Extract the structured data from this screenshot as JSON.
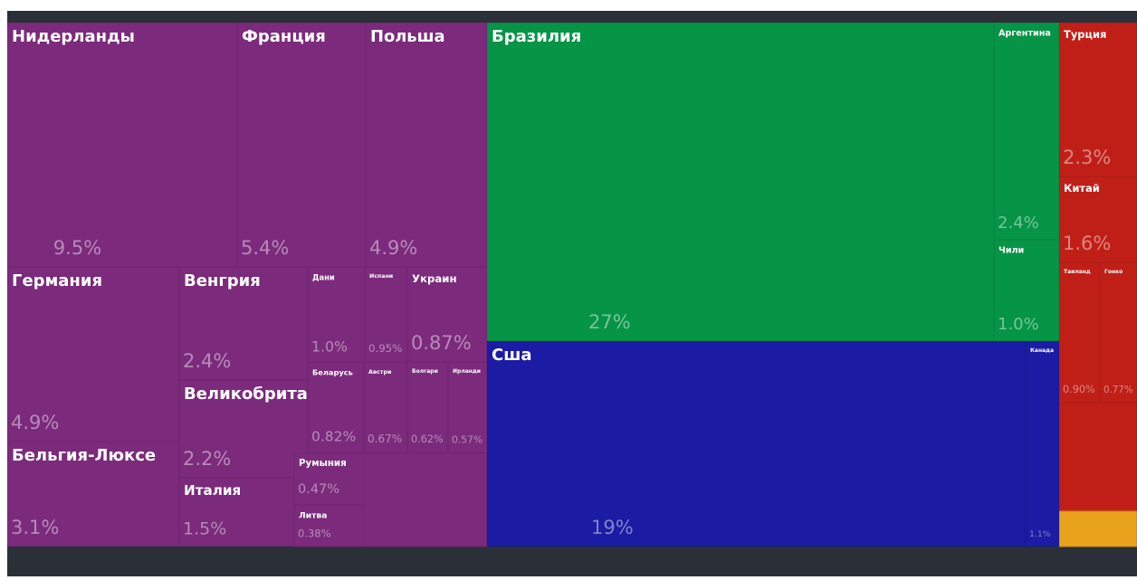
{
  "chart_data": {
    "type": "treemap",
    "categories": [
      "Нидерланды",
      "Франция",
      "Польша",
      "Германия",
      "Бельгия-Люксе",
      "Венгрия",
      "Великобритания",
      "Италия",
      "Дани",
      "Испани",
      "Украин",
      "Беларусь",
      "Румыния",
      "Литва",
      "Австри",
      "Болгари",
      "Ирланди",
      "Бразилия",
      "Аргентина",
      "Чили",
      "Сша",
      "Канада",
      "Турция",
      "Китай",
      "Таиланд",
      "Гонко"
    ],
    "values": [
      9.5,
      5.4,
      4.9,
      4.9,
      3.1,
      2.4,
      2.2,
      1.5,
      1.0,
      0.95,
      0.87,
      0.82,
      0.47,
      0.38,
      0.67,
      0.62,
      0.57,
      27,
      2.4,
      1.0,
      19,
      1.1,
      2.3,
      1.6,
      0.9,
      0.77
    ],
    "value_labels": [
      "9.5%",
      "5.4%",
      "4.9%",
      "4.9%",
      "3.1%",
      "2.4%",
      "2.2%",
      "1.5%",
      "1.0%",
      "0.95%",
      "0.87%",
      "0.82%",
      "0.47%",
      "0.38%",
      "0.67%",
      "0.62%",
      "0.57%",
      "27%",
      "2.4%",
      "1.0%",
      "19%",
      "1.1%",
      "2.3%",
      "1.6%",
      "0.90%",
      "0.77%"
    ],
    "colors": [
      "#7b2a7c",
      "#7b2a7c",
      "#7b2a7c",
      "#7b2a7c",
      "#7b2a7c",
      "#7b2a7c",
      "#7b2a7c",
      "#7b2a7c",
      "#7b2a7c",
      "#7b2a7c",
      "#7b2a7c",
      "#7b2a7c",
      "#7b2a7c",
      "#7b2a7c",
      "#7b2a7c",
      "#7b2a7c",
      "#7b2a7c",
      "#069446",
      "#069446",
      "#069446",
      "#1b1ba3",
      "#1b1ba3",
      "#c01f18",
      "#c01f18",
      "#c01f18",
      "#c01f18"
    ]
  }
}
